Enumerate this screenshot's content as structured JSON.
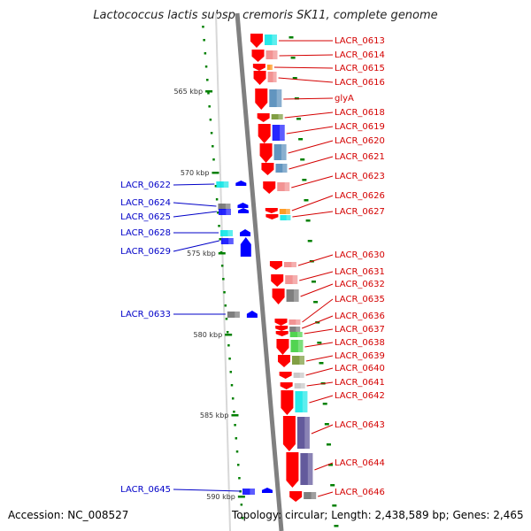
{
  "title": "Lactococcus lactis subsp. cremoris SK11, complete genome",
  "footer": {
    "accession": "Accession: NC_008527",
    "topology": "Topology: circular; Length: 2,438,589 bp; Genes: 2,465"
  },
  "ticks": [
    "565 kbp",
    "570 kbp",
    "575 kbp",
    "580 kbp",
    "585 kbp",
    "590 kbp"
  ],
  "colors": {
    "backbone": "#808080",
    "cds_strand": "#ff0000",
    "left_label": "#0000c8",
    "right_label": "#d40000",
    "tick_mark": "#008000",
    "gene_arrow_left": "#0000ff"
  },
  "right_genes": [
    {
      "label": "LACR_0613",
      "feature_color": "#00e5e5"
    },
    {
      "label": "LACR_0614",
      "feature_color": "#f08080"
    },
    {
      "label": "LACR_0615",
      "feature_color": "#ff8c00"
    },
    {
      "label": "LACR_0616",
      "feature_color": "#f08080"
    },
    {
      "label": "glyA",
      "feature_color": "#4682b4"
    },
    {
      "label": "LACR_0618",
      "feature_color": "#6b8e23"
    },
    {
      "label": "LACR_0619",
      "feature_color": "#0000ff"
    },
    {
      "label": "LACR_0620",
      "feature_color": "#4682b4"
    },
    {
      "label": "LACR_0621",
      "feature_color": "#4682b4"
    },
    {
      "label": "LACR_0623",
      "feature_color": "#f08080"
    },
    {
      "label": "LACR_0626",
      "feature_color": "#ff8c00"
    },
    {
      "label": "LACR_0627",
      "feature_color": "#00e5e5"
    },
    {
      "label": "LACR_0630",
      "feature_color": "#f08080"
    },
    {
      "label": "LACR_0631",
      "feature_color": "#f08080"
    },
    {
      "label": "LACR_0632",
      "feature_color": "#696969"
    },
    {
      "label": "LACR_0635",
      "feature_color": "#f08080"
    },
    {
      "label": "LACR_0636",
      "feature_color": "#696969"
    },
    {
      "label": "LACR_0637",
      "feature_color": "#32cd32"
    },
    {
      "label": "LACR_0638",
      "feature_color": "#32cd32"
    },
    {
      "label": "LACR_0639",
      "feature_color": "#6b8e23"
    },
    {
      "label": "LACR_0640",
      "feature_color": "#c0c0c0"
    },
    {
      "label": "LACR_0641",
      "feature_color": "#c0c0c0"
    },
    {
      "label": "LACR_0642",
      "feature_color": "#00e5e5"
    },
    {
      "label": "LACR_0643",
      "feature_color": "#483d8b"
    },
    {
      "label": "LACR_0644",
      "feature_color": "#483d8b"
    },
    {
      "label": "LACR_0646",
      "feature_color": "#696969"
    }
  ],
  "left_genes": [
    {
      "label": "LACR_0622",
      "feature_color": "#00e5e5"
    },
    {
      "label": "LACR_0624",
      "feature_color": "#696969"
    },
    {
      "label": "LACR_0625",
      "feature_color": "#0000ff"
    },
    {
      "label": "LACR_0628",
      "feature_color": "#00e5e5"
    },
    {
      "label": "LACR_0629",
      "feature_color": "#0000ff"
    },
    {
      "label": "LACR_0633",
      "feature_color": "#696969"
    },
    {
      "label": "LACR_0645",
      "feature_color": "#0000ff"
    }
  ]
}
